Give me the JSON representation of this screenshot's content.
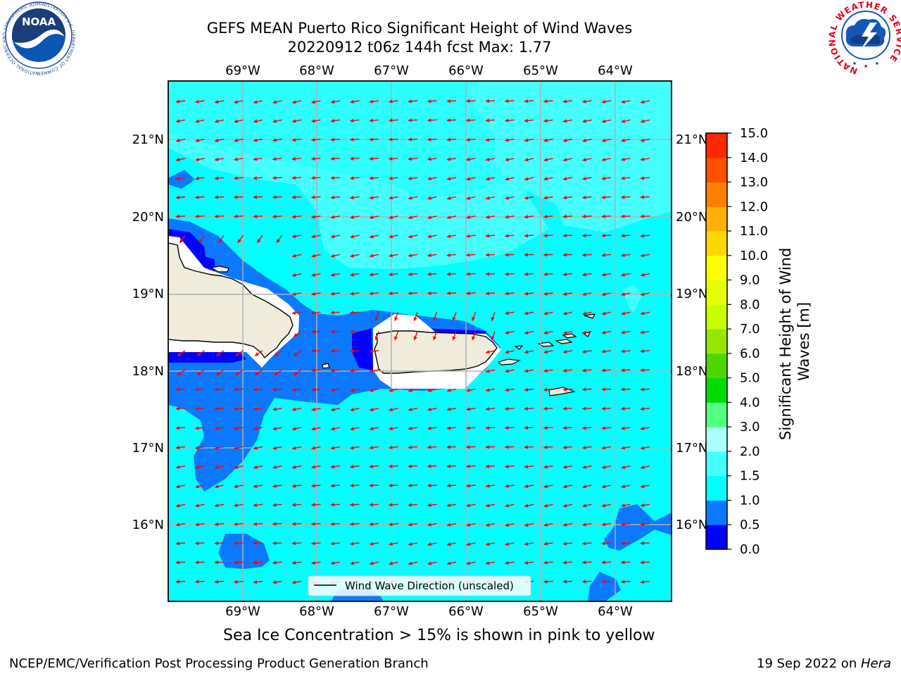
{
  "header": {
    "title_line1": "GEFS MEAN Puerto Rico Significant Height of Wind Waves",
    "title_line2": "20220912 t06z 144h fcst   Max: 1.77"
  },
  "logos": {
    "left": {
      "name": "NOAA",
      "ring_text": "NATIONAL OCEANIC AND ATMOSPHERIC ADMINISTRATION  U.S. DEPARTMENT OF COMMERCE"
    },
    "right": {
      "name": "NATIONAL WEATHER SERVICE"
    }
  },
  "map": {
    "lon_labels": [
      "69°W",
      "68°W",
      "67°W",
      "66°W",
      "65°W",
      "64°W"
    ],
    "lat_labels": [
      "21°N",
      "20°N",
      "19°N",
      "18°N",
      "17°N",
      "16°N"
    ],
    "legend_label": "Wind Wave Direction (unscaled)",
    "wave_direction": "from east toward west (westward, slightly southward)",
    "colors": {
      "land": "#efecdc",
      "coast": "#000000",
      "arrow": "#ff0000",
      "grid": "#b0b0b0"
    }
  },
  "colorbar": {
    "label": "Significant Height of Wind Waves [m]",
    "ticks": [
      "0.0",
      "0.5",
      "1.0",
      "1.5",
      "2.0",
      "3.0",
      "4.0",
      "5.0",
      "6.0",
      "7.0",
      "8.0",
      "9.0",
      "10.0",
      "11.0",
      "12.0",
      "13.0",
      "14.0",
      "15.0"
    ],
    "colors": [
      "#0000ff",
      "#0a79ff",
      "#00ffff",
      "#45ffff",
      "#acffff",
      "#55ff7f",
      "#00dc00",
      "#4dd600",
      "#96e600",
      "#c8ff00",
      "#e6ff00",
      "#ffff00",
      "#ffd700",
      "#ffb000",
      "#ff8000",
      "#ff5000",
      "#ff2800"
    ]
  },
  "footer": {
    "sea_ice_note": "Sea Ice Concentration > 15% is shown in pink to yellow",
    "left": "NCEP/EMC/Verification Post Processing Product Generation Branch",
    "right_date": "19 Sep 2022 on ",
    "right_host": "Hera"
  }
}
